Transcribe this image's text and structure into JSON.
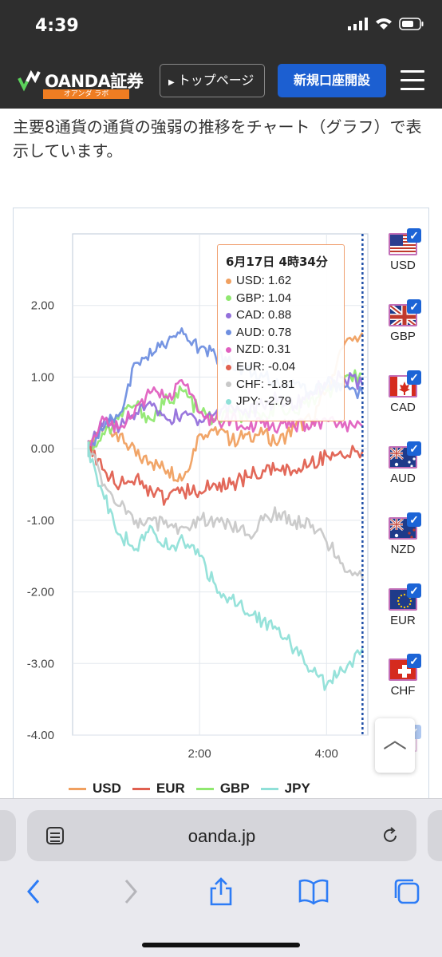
{
  "status_bar": {
    "time": "4:39"
  },
  "header": {
    "logo_text": "OANDA証券",
    "logo_sub": "オアンダ ラボ",
    "top_page_label": "トップページ",
    "open_account_label": "新規口座開設"
  },
  "intro_text": "主要8通貨の通貨の強弱の推移をチャート（グラフ）で表示しています。",
  "tooltip": {
    "title": "6月17日 4時34分",
    "rows": [
      {
        "label": "USD: 1.62",
        "color": "#f0a060"
      },
      {
        "label": "GBP: 1.04",
        "color": "#90e870"
      },
      {
        "label": "CAD: 0.88",
        "color": "#9370db"
      },
      {
        "label": "AUD: 0.78",
        "color": "#6f8fe0"
      },
      {
        "label": "NZD: 0.31",
        "color": "#e060c0"
      },
      {
        "label": "EUR: -0.04",
        "color": "#e06050"
      },
      {
        "label": "CHF: -1.81",
        "color": "#c8c8c8"
      },
      {
        "label": "JPY: -2.79",
        "color": "#90e0d8"
      }
    ]
  },
  "currency_toggles": [
    {
      "code": "USD",
      "flag": "us-flag",
      "checked": true
    },
    {
      "code": "GBP",
      "flag": "uk-flag",
      "checked": true
    },
    {
      "code": "CAD",
      "flag": "canada-flag",
      "checked": true
    },
    {
      "code": "AUD",
      "flag": "australia-flag",
      "checked": true
    },
    {
      "code": "NZD",
      "flag": "new-zealand-flag",
      "checked": true
    },
    {
      "code": "EUR",
      "flag": "eu-flag",
      "checked": true
    },
    {
      "code": "CHF",
      "flag": "swiss-flag",
      "checked": true
    },
    {
      "code": "JPY",
      "flag": "japan-flag",
      "checked": true
    }
  ],
  "legend": [
    {
      "label": "USD",
      "color": "#f0a060"
    },
    {
      "label": "EUR",
      "color": "#e06050"
    },
    {
      "label": "GBP",
      "color": "#90e870"
    },
    {
      "label": "JPY",
      "color": "#90e0d8"
    }
  ],
  "browser": {
    "url": "oanda.jp"
  },
  "chart_data": {
    "type": "line",
    "title": "",
    "xlabel": "",
    "ylabel": "",
    "x_ticks": [
      "2:00",
      "4:00"
    ],
    "y_ticks": [
      "2.00",
      "1.00",
      "0.00",
      "-1.00",
      "-2.00",
      "-3.00",
      "-4.00"
    ],
    "ylim": [
      -4.0,
      3.0
    ],
    "x": [
      "0:15",
      "0:30",
      "0:45",
      "1:00",
      "1:15",
      "1:30",
      "1:45",
      "2:00",
      "2:15",
      "2:30",
      "2:45",
      "3:00",
      "3:15",
      "3:30",
      "3:45",
      "4:00",
      "4:15",
      "4:34"
    ],
    "grid": true,
    "crosshair_at": "4:34",
    "series": [
      {
        "name": "USD",
        "color": "#f0a060",
        "values": [
          0.0,
          0.3,
          0.2,
          -0.1,
          -0.2,
          -0.3,
          -0.4,
          0.2,
          0.3,
          0.1,
          0.2,
          0.2,
          0.1,
          0.3,
          0.4,
          0.8,
          1.4,
          1.62
        ]
      },
      {
        "name": "GBP",
        "color": "#90e870",
        "values": [
          0.0,
          0.2,
          0.5,
          0.6,
          0.4,
          0.7,
          0.8,
          0.5,
          0.4,
          0.5,
          0.4,
          0.5,
          0.6,
          0.5,
          0.7,
          0.8,
          0.9,
          1.04
        ]
      },
      {
        "name": "CAD",
        "color": "#9370db",
        "values": [
          0.0,
          0.4,
          0.3,
          0.5,
          0.6,
          0.4,
          0.5,
          0.4,
          0.5,
          0.6,
          0.5,
          0.6,
          0.7,
          0.6,
          0.8,
          0.9,
          1.0,
          0.88
        ]
      },
      {
        "name": "AUD",
        "color": "#6f8fe0",
        "values": [
          0.0,
          0.3,
          0.5,
          1.2,
          1.3,
          1.5,
          1.6,
          1.4,
          1.3,
          1.2,
          1.1,
          1.0,
          0.9,
          0.9,
          0.8,
          0.9,
          0.9,
          0.78
        ]
      },
      {
        "name": "NZD",
        "color": "#e060c0",
        "values": [
          0.0,
          0.4,
          0.3,
          0.6,
          0.8,
          0.7,
          0.9,
          0.5,
          0.4,
          0.4,
          0.3,
          0.4,
          0.3,
          0.3,
          0.3,
          0.4,
          0.3,
          0.31
        ]
      },
      {
        "name": "EUR",
        "color": "#e06050",
        "values": [
          0.0,
          -0.3,
          -0.5,
          -0.4,
          -0.6,
          -0.7,
          -0.6,
          -0.6,
          -0.5,
          -0.5,
          -0.4,
          -0.3,
          -0.3,
          -0.3,
          -0.2,
          -0.1,
          -0.1,
          -0.04
        ]
      },
      {
        "name": "CHF",
        "color": "#c8c8c8",
        "values": [
          0.0,
          -0.5,
          -0.8,
          -1.0,
          -1.0,
          -1.1,
          -1.1,
          -1.0,
          -1.0,
          -1.1,
          -1.2,
          -1.0,
          -0.9,
          -1.0,
          -1.1,
          -1.3,
          -1.6,
          -1.81
        ]
      },
      {
        "name": "JPY",
        "color": "#90e0d8",
        "values": [
          0.0,
          -0.7,
          -1.2,
          -1.4,
          -1.1,
          -1.4,
          -1.3,
          -1.5,
          -1.9,
          -2.1,
          -2.3,
          -2.4,
          -2.5,
          -2.8,
          -3.1,
          -3.3,
          -3.1,
          -2.79
        ]
      }
    ]
  }
}
